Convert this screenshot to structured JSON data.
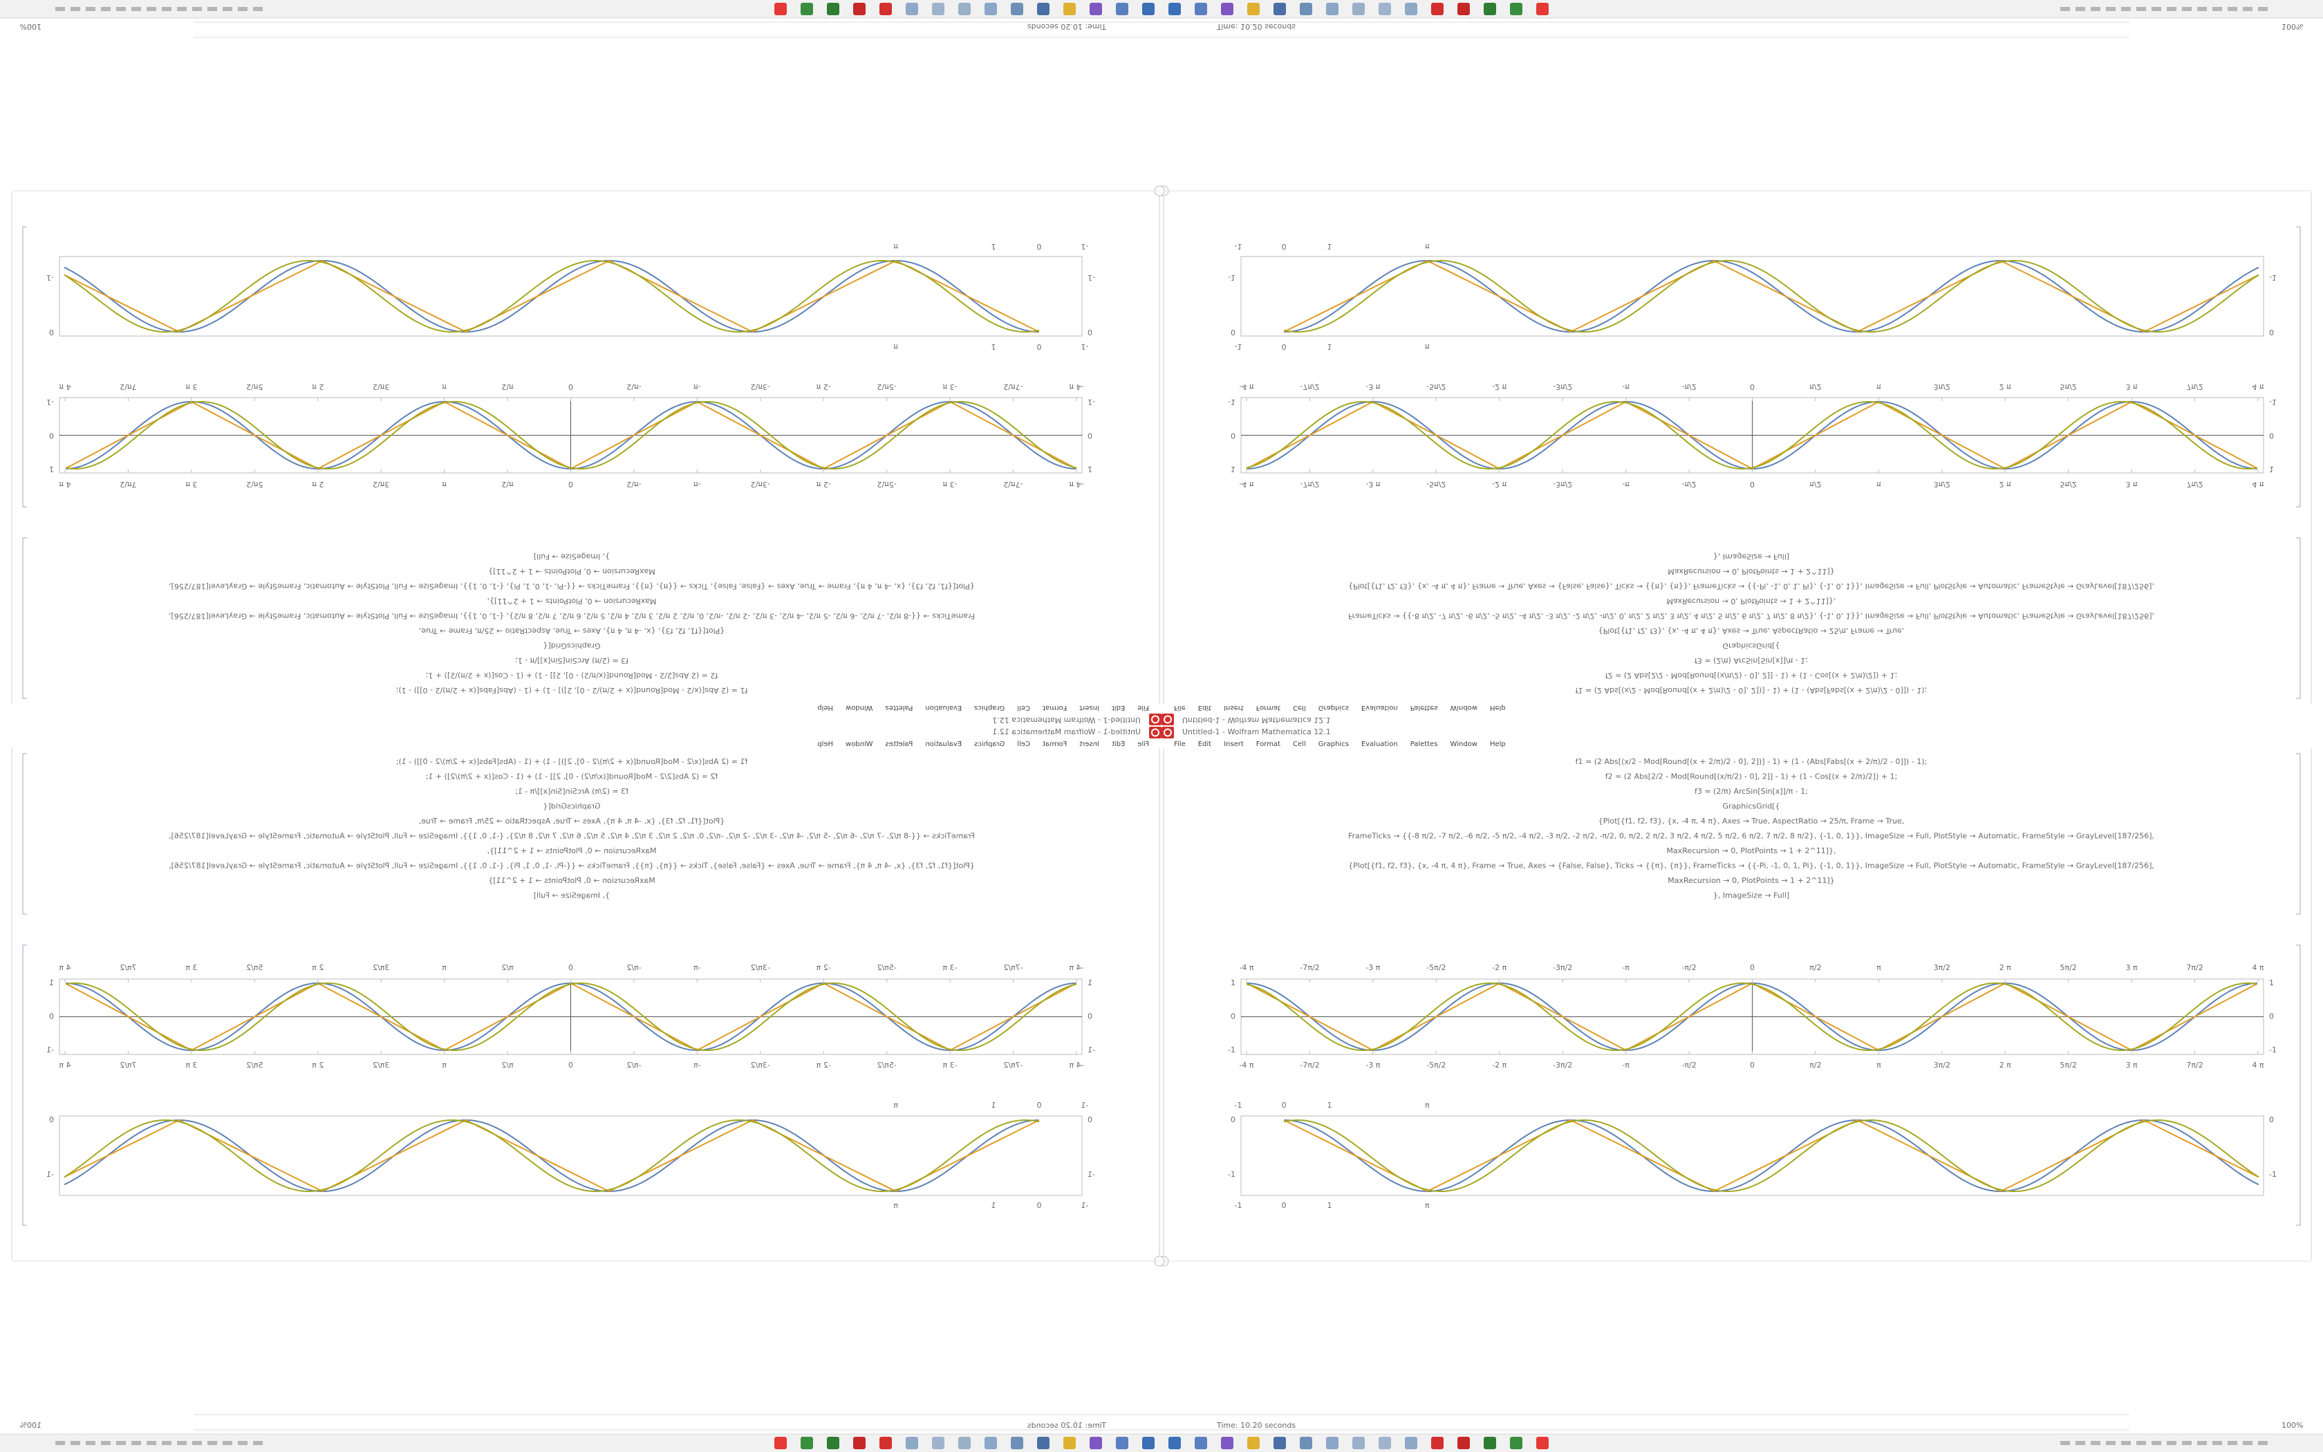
{
  "window": {
    "title": "Untitled-1 - Wolfram Mathematica 12.1",
    "menu": [
      "File",
      "Edit",
      "Insert",
      "Format",
      "Cell",
      "Graphics",
      "Evaluation",
      "Palettes",
      "Window",
      "Help"
    ],
    "status": "Time: 10.20 seconds",
    "zoom": "100%"
  },
  "notebook": {
    "code": [
      "f1 = (2 Abs[(x/2 - Mod[Round[(x + 2/π)/2 - 0], 2])] - 1) + (1 - (Abs[Fabs[(x + 2/π)/2 - 0]]) - 1);",
      "f2 = (2 Abs[2/2 - Mod[Round[(x/π/2) - 0], 2]] - 1) + (1 - Cos[(x + 2/π)/2]) + 1;",
      "f3 = (2/π) ArcSin[Sin[x]]/π - 1;",
      "GraphicsGrid[{",
      "{Plot[{f1, f2, f3}, {x, -4 π, 4 π}, Axes → True, AspectRatio → 25/π, Frame → True,",
      "FrameTicks → {{-8 π/2, -7 π/2, -6 π/2, -5 π/2, -4 π/2, -3 π/2, -2 π/2, -π/2, 0, π/2, 2 π/2, 3 π/2, 4 π/2, 5 π/2, 6 π/2, 7 π/2, 8 π/2}, {-1, 0, 1}}, ImageSize → Full, PlotStyle → Automatic, FrameStyle → GrayLevel[187/256],",
      "MaxRecursion → 0, PlotPoints → 1 + 2^11]},",
      "{Plot[{f1, f2, f3}, {x, -4 π, 4 π}, Frame → True, Axes → {False, False}, Ticks → {{π}, {π}}, FrameTicks → {{-Pi, -1, 0, 1, Pi}, {-1, 0, 1}}, ImageSize → Full, PlotStyle → Automatic, FrameStyle → GrayLevel[187/256],",
      "MaxRecursion → 0, PlotPoints → 1 + 2^11]}",
      "}, ImageSize → Full]"
    ],
    "plot1": {
      "x_ticks": [
        "-4 π",
        "-7π/2",
        "-3 π",
        "-5π/2",
        "-2 π",
        "-3π/2",
        "-π",
        "-π/2",
        "0",
        "π/2",
        "π",
        "3π/2",
        "2 π",
        "5π/2",
        "3 π",
        "7π/2",
        "4 π"
      ],
      "y_ticks": [
        "1",
        "0",
        "-1"
      ]
    },
    "plot2": {
      "x_ticks": [
        "-1",
        "0",
        "1",
        "π"
      ],
      "y_ticks": [
        "0",
        "-1"
      ]
    }
  }
}
